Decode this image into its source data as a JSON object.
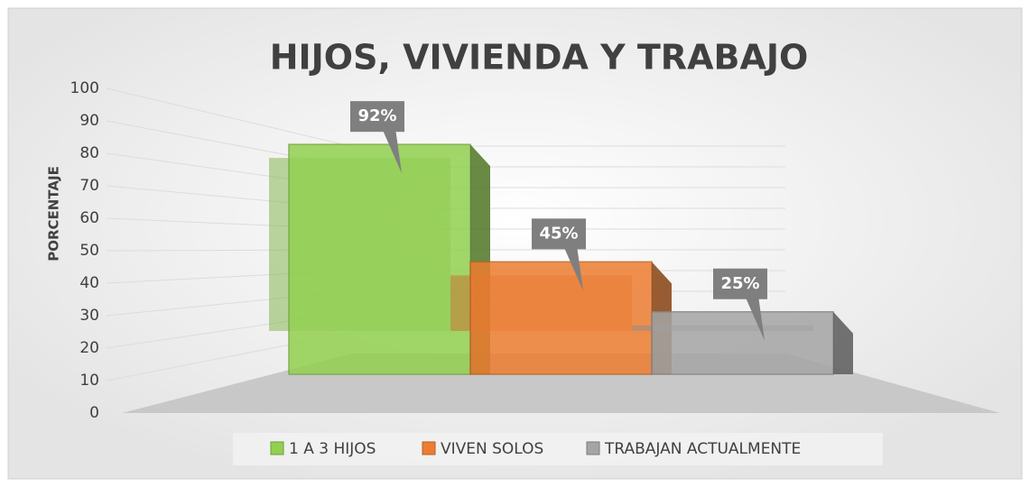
{
  "chart_data": {
    "type": "bar3d",
    "title": "HIJOS, VIVIENDA Y TRABAJO",
    "y_label": "PORCENTAJE",
    "categories": [
      null
    ],
    "series": [
      {
        "name": "1 A 3 HIJOS",
        "color": "#92d050",
        "values": [
          92
        ],
        "value_labels": [
          "92%"
        ]
      },
      {
        "name": "VIVEN SOLOS",
        "color": "#ed7d31",
        "values": [
          45
        ],
        "value_labels": [
          "45%"
        ]
      },
      {
        "name": "TRABAJAN ACTUALMENTE",
        "color": "#a5a5a5",
        "values": [
          25
        ],
        "value_labels": [
          "25%"
        ]
      }
    ],
    "ylim": [
      0,
      100
    ],
    "yticks": [
      0,
      10,
      20,
      30,
      40,
      50,
      60,
      70,
      80,
      90,
      100
    ],
    "grid": true,
    "legend": "bottom"
  }
}
